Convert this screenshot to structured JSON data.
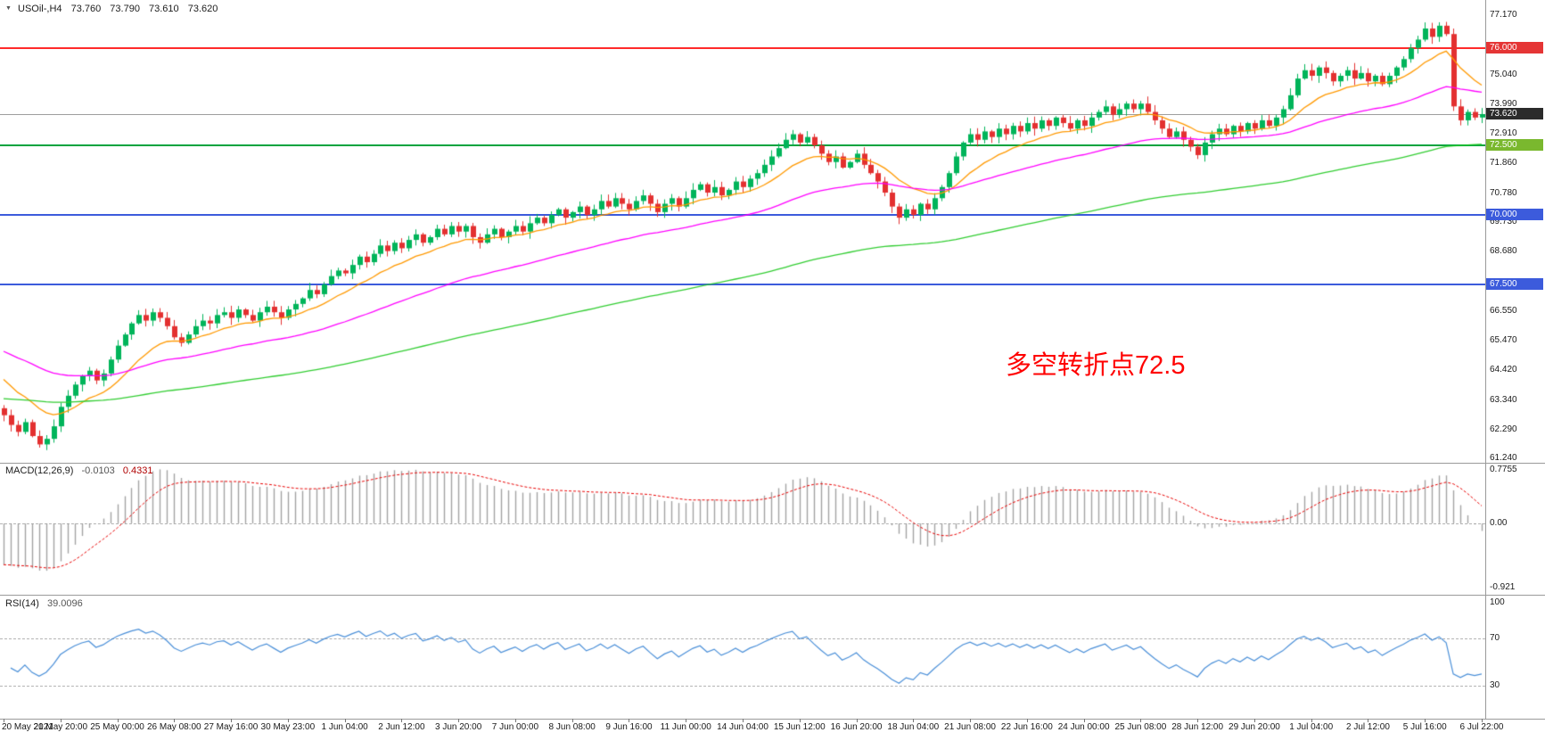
{
  "header": {
    "collapse_icon": "▼",
    "symbol": "USOil-,H4",
    "open": "73.760",
    "high": "73.790",
    "low": "73.610",
    "close": "73.620"
  },
  "annotation": {
    "text": "多空转折点72.5",
    "color": "#ff0000"
  },
  "price_axis": {
    "labels": [
      "77.170",
      "75.040",
      "73.990",
      "72.910",
      "71.860",
      "70.780",
      "69.730",
      "68.680",
      "66.550",
      "65.470",
      "64.420",
      "63.340",
      "62.290",
      "61.240"
    ]
  },
  "levels": [
    {
      "label": "76.000",
      "price": 76.0,
      "line_color": "#ff2a2a",
      "badge_bg": "#e53535",
      "width": 2,
      "role": "resistance"
    },
    {
      "label": "73.620",
      "price": 73.62,
      "line_color": "#9e9e9e",
      "badge_bg": "#2b2b2b",
      "width": 1,
      "role": "current-price"
    },
    {
      "label": "72.500",
      "price": 72.5,
      "line_color": "#00a33e",
      "badge_bg": "#7ab82e",
      "width": 2,
      "role": "pivot"
    },
    {
      "label": "70.000",
      "price": 70.0,
      "line_color": "#3c5bdc",
      "badge_bg": "#3c5bdc",
      "width": 2,
      "role": "support"
    },
    {
      "label": "67.500",
      "price": 67.5,
      "line_color": "#3c5bdc",
      "badge_bg": "#3c5bdc",
      "width": 2,
      "role": "support"
    }
  ],
  "macd_panel": {
    "title": "MACD(12,26,9)",
    "macd_value": "-0.0103",
    "signal_value": "0.4331",
    "scale": {
      "top": "0.7755",
      "zero": "0.00",
      "bottom": "-0.921"
    }
  },
  "rsi_panel": {
    "title": "RSI(14)",
    "value": "39.0096",
    "scale": [
      "100",
      "70",
      "30"
    ]
  },
  "chart_data": {
    "type": "candlestick",
    "title": "USOil-,H4",
    "symbol": "USOil",
    "timeframe": "H4",
    "last_ohlc": {
      "open": 73.76,
      "high": 73.79,
      "low": 73.61,
      "close": 73.62
    },
    "price_axis_range": [
      61.12,
      77.44
    ],
    "horizontal_levels": [
      76.0,
      72.5,
      70.0,
      67.5
    ],
    "current_price": 73.62,
    "annotation": "多空转折点72.5",
    "colors": {
      "bull": "#00b45a",
      "bear": "#e33030"
    },
    "closes": [
      62.8,
      62.45,
      62.2,
      62.55,
      62.05,
      61.75,
      61.95,
      62.4,
      63.1,
      63.5,
      63.9,
      64.2,
      64.4,
      64.05,
      64.3,
      64.8,
      65.3,
      65.7,
      66.1,
      66.4,
      66.2,
      66.5,
      66.3,
      66.0,
      65.6,
      65.4,
      65.7,
      66.0,
      66.2,
      66.1,
      66.4,
      66.5,
      66.3,
      66.6,
      66.4,
      66.2,
      66.5,
      66.7,
      66.5,
      66.3,
      66.6,
      66.8,
      67.0,
      67.3,
      67.15,
      67.5,
      67.8,
      68.0,
      67.9,
      68.2,
      68.5,
      68.3,
      68.6,
      68.9,
      68.7,
      69.0,
      68.8,
      69.1,
      69.3,
      69.0,
      69.2,
      69.5,
      69.3,
      69.6,
      69.4,
      69.6,
      69.2,
      69.0,
      69.3,
      69.5,
      69.2,
      69.4,
      69.6,
      69.4,
      69.7,
      69.9,
      69.7,
      70.0,
      70.2,
      69.9,
      70.1,
      70.3,
      70.0,
      70.2,
      70.5,
      70.3,
      70.6,
      70.4,
      70.2,
      70.5,
      70.7,
      70.4,
      70.1,
      70.4,
      70.6,
      70.3,
      70.6,
      70.9,
      71.1,
      70.8,
      71.0,
      70.7,
      70.9,
      71.2,
      71.0,
      71.3,
      71.5,
      71.8,
      72.1,
      72.4,
      72.7,
      72.9,
      72.6,
      72.8,
      72.5,
      72.2,
      71.9,
      72.1,
      71.7,
      71.9,
      72.2,
      71.8,
      71.5,
      71.2,
      70.8,
      70.3,
      69.9,
      70.2,
      70.0,
      70.4,
      70.2,
      70.6,
      71.0,
      71.5,
      72.1,
      72.6,
      72.9,
      72.7,
      73.0,
      72.8,
      73.1,
      72.9,
      73.2,
      73.0,
      73.3,
      73.1,
      73.4,
      73.2,
      73.5,
      73.3,
      73.1,
      73.4,
      73.2,
      73.5,
      73.7,
      73.9,
      73.6,
      73.8,
      74.0,
      73.8,
      74.0,
      73.7,
      73.4,
      73.1,
      72.8,
      73.0,
      72.7,
      72.45,
      72.15,
      72.6,
      72.9,
      73.1,
      72.9,
      73.2,
      73.0,
      73.3,
      73.1,
      73.4,
      73.2,
      73.5,
      73.8,
      74.3,
      74.9,
      75.2,
      75.0,
      75.3,
      75.1,
      74.8,
      75.0,
      75.2,
      74.9,
      75.1,
      74.8,
      75.0,
      74.7,
      75.0,
      75.3,
      75.6,
      76.0,
      76.3,
      76.7,
      76.4,
      76.8,
      76.5,
      73.9,
      73.4,
      73.7,
      73.5,
      73.62
    ],
    "x_labels": [
      "20 May 2021",
      "21 May 20:00",
      "25 May 00:00",
      "26 May 08:00",
      "27 May 16:00",
      "30 May 23:00",
      "1 Jun 04:00",
      "2 Jun 12:00",
      "3 Jun 20:00",
      "7 Jun 00:00",
      "8 Jun 08:00",
      "9 Jun 16:00",
      "11 Jun 00:00",
      "14 Jun 04:00",
      "15 Jun 12:00",
      "16 Jun 20:00",
      "18 Jun 04:00",
      "21 Jun 08:00",
      "22 Jun 16:00",
      "24 Jun 00:00",
      "25 Jun 08:00",
      "28 Jun 12:00",
      "29 Jun 20:00",
      "1 Jul 04:00",
      "2 Jul 12:00",
      "5 Jul 16:00",
      "6 Jul 22:00"
    ],
    "bars_per_x_label": 8,
    "moving_averages": [
      {
        "name": "fast-ma",
        "period": 13,
        "seed": 64.3,
        "color": "#ff9900"
      },
      {
        "name": "medium-ma",
        "period": 45,
        "seed": 65.2,
        "color": "#ff00ff"
      },
      {
        "name": "slow-ma",
        "period": 130,
        "seed": 63.4,
        "color": "#32cd32"
      }
    ],
    "indicators": {
      "macd": {
        "fast": 12,
        "slow": 26,
        "signal": 9,
        "current": -0.0103,
        "signal_current": 0.4331,
        "scale": [
          0.7755,
          0,
          -0.921
        ],
        "histogram_color": "#a3a3a3",
        "signal_color": "#e80000"
      },
      "rsi": {
        "period": 14,
        "current": 39.0096,
        "levels": [
          70,
          30
        ],
        "line_color": "#4a8fd8"
      }
    },
    "legend_position": "none",
    "grid": "off"
  }
}
